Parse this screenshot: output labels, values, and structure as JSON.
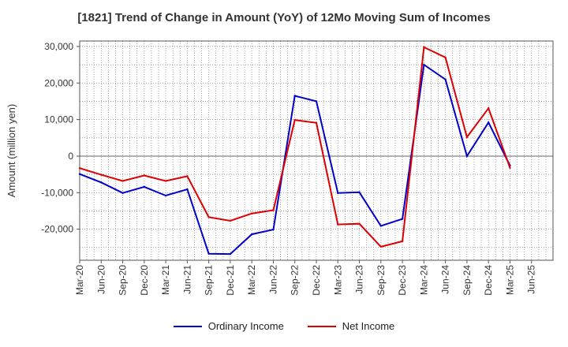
{
  "chart_data": {
    "type": "line",
    "title": "[1821]  Trend of Change in Amount (YoY) of 12Mo Moving Sum of Incomes",
    "ylabel": "Amount (million yen)",
    "xlabel": "",
    "ylim": [
      -28500,
      31500
    ],
    "yticks": [
      30000,
      20000,
      10000,
      0,
      -10000,
      -20000
    ],
    "ytick_labels": [
      "30,000",
      "20,000",
      "10,000",
      "0",
      "-10,000",
      "-20,000"
    ],
    "categories": [
      "Mar-20",
      "Jun-20",
      "Sep-20",
      "Dec-20",
      "Mar-21",
      "Jun-21",
      "Sep-21",
      "Dec-21",
      "Mar-22",
      "Jun-22",
      "Sep-22",
      "Dec-22",
      "Mar-23",
      "Jun-23",
      "Sep-23",
      "Dec-23",
      "Mar-24",
      "Jun-24",
      "Sep-24",
      "Dec-24",
      "Mar-25",
      "Jun-25"
    ],
    "grid": true,
    "legend_position": "bottom",
    "series": [
      {
        "name": "Ordinary Income",
        "color": "#0000cc",
        "values": [
          -4900,
          -7200,
          -10100,
          -8400,
          -10800,
          -9100,
          -26700,
          -26800,
          -21400,
          -20100,
          16500,
          15000,
          -10100,
          -9900,
          -19100,
          -17200,
          25000,
          21000,
          0,
          9200,
          -2600,
          null
        ]
      },
      {
        "name": "Net Income",
        "color": "#dd0000",
        "values": [
          -3300,
          -5100,
          -6800,
          -5300,
          -6800,
          -5500,
          -16700,
          -17700,
          -15700,
          -14800,
          9900,
          9100,
          -18700,
          -18500,
          -24800,
          -23300,
          29800,
          27000,
          5200,
          13100,
          -3200,
          null
        ]
      }
    ]
  }
}
